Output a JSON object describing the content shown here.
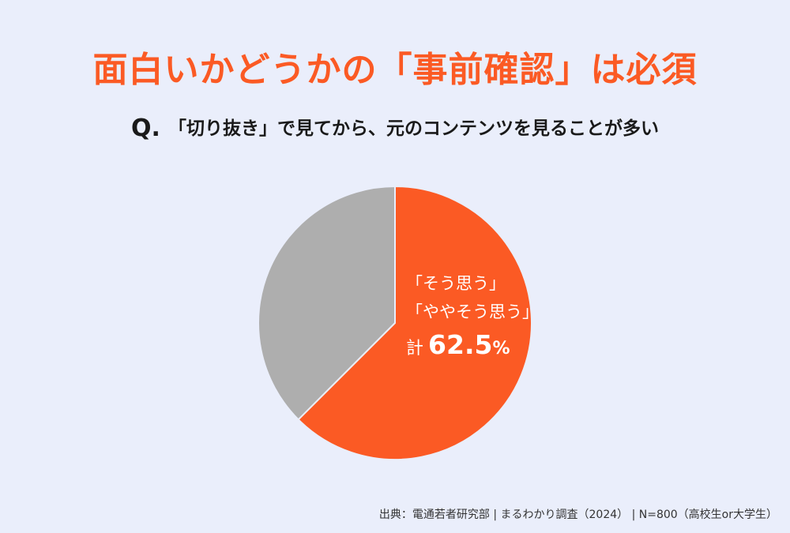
{
  "headline": "面白いかどうかの「事前確認」は必須",
  "question": {
    "prefix": "Q.",
    "text": "「切り抜き」で見てから、元のコンテンツを見ることが多い"
  },
  "chart_data": {
    "type": "pie",
    "start": "12 o'clock, clockwise",
    "slices": [
      {
        "value": 62.5,
        "color": "#fb5a24",
        "label_lines": [
          "「そう思う」",
          "「ややそう思う」"
        ],
        "total_prefix": "計",
        "value_label": "62.5",
        "unit": "%"
      },
      {
        "value": 37.5,
        "color": "#aeaeae"
      }
    ]
  },
  "source": "出典：電通若者研究部 | まるわかり調査（2024） | N=800（高校生or大学生）"
}
